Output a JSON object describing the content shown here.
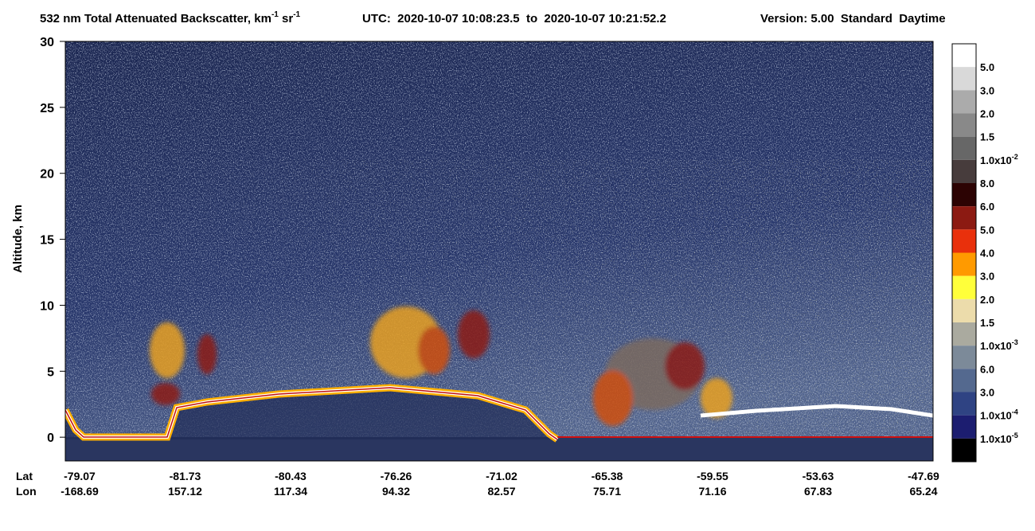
{
  "chart_data": {
    "type": "curtain",
    "title": [
      "532 nm Total Attenuated Backscatter, km",
      "-1",
      " sr",
      "-1"
    ],
    "time_range": "UTC:  2020-10-07 10:08:23.5  to  2020-10-07 10:21:52.2",
    "version": "Version: 5.00  Standard  Daytime",
    "ylabel": "Altitude, km",
    "ylim": [
      -1.8,
      30
    ],
    "yticks": [
      0,
      5,
      10,
      15,
      20,
      25,
      30
    ],
    "x_rows": [
      {
        "name": "Lat",
        "labels": [
          "-79.07",
          "-81.73",
          "-80.43",
          "-76.26",
          "-71.02",
          "-65.38",
          "-59.55",
          "-53.63",
          "-47.69"
        ]
      },
      {
        "name": "Lon",
        "labels": [
          "-168.69",
          "157.12",
          "117.34",
          "94.32",
          "82.57",
          "75.71",
          "71.16",
          "67.83",
          "65.24"
        ]
      }
    ],
    "colorbar": {
      "colors": [
        "#ffffff",
        "#d9d9d9",
        "#ababab",
        "#898989",
        "#676767",
        "#473c3c",
        "#2c0303",
        "#8c1a12",
        "#e9300c",
        "#ff9a00",
        "#ffff3a",
        "#ecdcab",
        "#aaaa9f",
        "#7c8a99",
        "#54698f",
        "#2f4383",
        "#1c1d70",
        "#000000"
      ],
      "labels": [
        "5.0",
        "3.0",
        "2.0",
        "1.5",
        {
          "text": "1.0x10",
          "sup": "-2"
        },
        "8.0",
        "6.0",
        "5.0",
        "4.0",
        "3.0",
        "2.0",
        "1.5",
        {
          "text": "1.0x10",
          "sup": "-3"
        },
        "6.0",
        "3.0",
        {
          "text": "1.0x10",
          "sup": "-4"
        },
        {
          "text": "1.0x10",
          "sup": "-5"
        }
      ]
    }
  }
}
